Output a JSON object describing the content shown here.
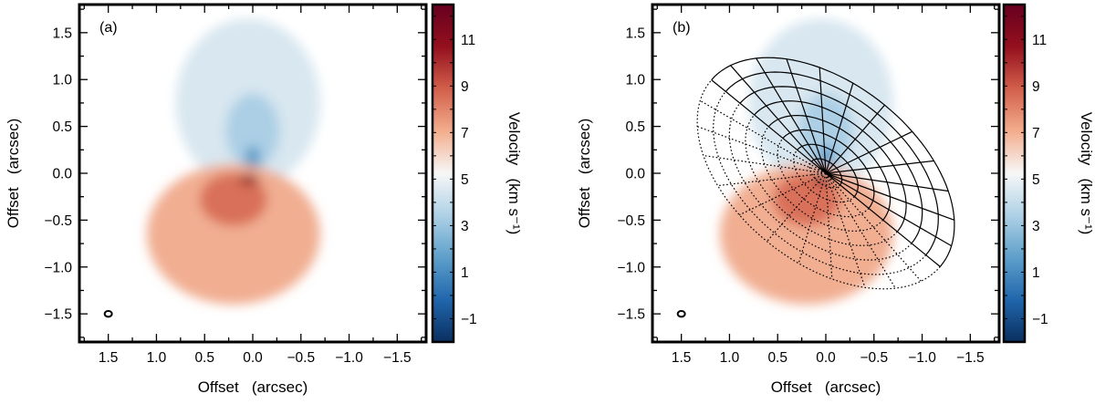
{
  "chart_data": [
    {
      "type": "heatmap",
      "panel_label": "(a)",
      "title": "",
      "xlabel": "Offset   (arcsec)",
      "ylabel": "Offset   (arcsec)",
      "xlim": [
        1.8,
        -1.8
      ],
      "ylim": [
        -1.8,
        1.8
      ],
      "xticks": [
        1.5,
        1.0,
        0.5,
        0.0,
        -0.5,
        -1.0,
        -1.5
      ],
      "xtick_labels": [
        "1.5",
        "1.0",
        "0.5",
        "0.0",
        "−0.5",
        "−1.0",
        "−1.5"
      ],
      "yticks": [
        1.5,
        1.0,
        0.5,
        0.0,
        -0.5,
        -1.0,
        -1.5
      ],
      "ytick_labels": [
        "1.5",
        "1.0",
        "0.5",
        "0.0",
        "−0.5",
        "−1.0",
        "−1.5"
      ],
      "colorbar": {
        "label": "Velocity   (km s⁻¹)",
        "range": [
          -2,
          12.5
        ],
        "ticks": [
          -1,
          1,
          3,
          5,
          7,
          9,
          11
        ],
        "tick_labels": [
          "−1",
          "1",
          "3",
          "5",
          "7",
          "9",
          "11"
        ],
        "colors": [
          "#0a2f5f",
          "#2066ac",
          "#5e9fca",
          "#aed1e6",
          "#f7f7f7",
          "#f3ad8d",
          "#d25f4b",
          "#94101e",
          "#67001f"
        ]
      },
      "systemic_velocity": 5.6,
      "beam": {
        "x": 1.5,
        "y": -1.5
      },
      "emission_regions": [
        {
          "name": "blue-lobe",
          "center": [
            0.05,
            0.75
          ],
          "rx": 0.75,
          "ry": 0.9,
          "velocity": 4.4
        },
        {
          "name": "blue-core",
          "center": [
            0.0,
            0.45
          ],
          "rx": 0.28,
          "ry": 0.4,
          "velocity": 3.3
        },
        {
          "name": "blue-jet",
          "center": [
            0.0,
            0.15
          ],
          "rx": 0.08,
          "ry": 0.15,
          "velocity": 1.5
        },
        {
          "name": "red-lobe",
          "center": [
            0.2,
            -0.65
          ],
          "rx": 0.9,
          "ry": 0.75,
          "velocity": 7.2
        },
        {
          "name": "red-inner",
          "center": [
            0.2,
            -0.28
          ],
          "rx": 0.35,
          "ry": 0.28,
          "velocity": 8.6
        },
        {
          "name": "red-core",
          "center": [
            0.04,
            -0.07
          ],
          "rx": 0.1,
          "ry": 0.05,
          "velocity": 11.5
        }
      ]
    },
    {
      "type": "heatmap",
      "panel_label": "(b)",
      "title": "",
      "xlabel": "Offset   (arcsec)",
      "ylabel": "Offset   (arcsec)",
      "xlim": [
        1.8,
        -1.8
      ],
      "ylim": [
        -1.8,
        1.8
      ],
      "xticks": [
        1.5,
        1.0,
        0.5,
        0.0,
        -0.5,
        -1.0,
        -1.5
      ],
      "xtick_labels": [
        "1.5",
        "1.0",
        "0.5",
        "0.0",
        "−0.5",
        "−1.0",
        "−1.5"
      ],
      "yticks": [
        1.5,
        1.0,
        0.5,
        0.0,
        -0.5,
        -1.0,
        -1.5
      ],
      "ytick_labels": [
        "1.5",
        "1.0",
        "0.5",
        "0.0",
        "−0.5",
        "−1.0",
        "−1.5"
      ],
      "colorbar": {
        "label": "Velocity   (km s⁻¹)",
        "range": [
          -2,
          12.5
        ],
        "ticks": [
          -1,
          1,
          3,
          5,
          7,
          9,
          11
        ],
        "tick_labels": [
          "−1",
          "1",
          "3",
          "5",
          "7",
          "9",
          "11"
        ],
        "colors": [
          "#0a2f5f",
          "#2066ac",
          "#5e9fca",
          "#aed1e6",
          "#f7f7f7",
          "#f3ad8d",
          "#d25f4b",
          "#94101e",
          "#67001f"
        ]
      },
      "systemic_velocity": 5.6,
      "beam": {
        "x": 1.5,
        "y": -1.5
      },
      "emission_regions": [
        {
          "name": "blue-lobe",
          "center": [
            0.05,
            0.75
          ],
          "rx": 0.75,
          "ry": 0.9,
          "velocity": 4.4
        },
        {
          "name": "blue-core",
          "center": [
            0.0,
            0.45
          ],
          "rx": 0.28,
          "ry": 0.4,
          "velocity": 3.3
        },
        {
          "name": "blue-jet",
          "center": [
            0.0,
            0.15
          ],
          "rx": 0.08,
          "ry": 0.15,
          "velocity": 1.5
        },
        {
          "name": "red-lobe",
          "center": [
            0.2,
            -0.65
          ],
          "rx": 0.9,
          "ry": 0.75,
          "velocity": 7.2
        },
        {
          "name": "red-inner",
          "center": [
            0.2,
            -0.28
          ],
          "rx": 0.35,
          "ry": 0.28,
          "velocity": 8.6
        },
        {
          "name": "red-core",
          "center": [
            0.04,
            -0.07
          ],
          "rx": 0.1,
          "ry": 0.05,
          "velocity": 11.5
        }
      ],
      "model_grid": {
        "center": [
          0.0,
          0.0
        ],
        "semi_major_arcsec": 1.55,
        "semi_minor_arcsec": 0.95,
        "position_angle_deg": 40,
        "n_rings": 8,
        "n_spokes": 24,
        "front_style": "solid",
        "back_style": "dotted"
      }
    }
  ]
}
